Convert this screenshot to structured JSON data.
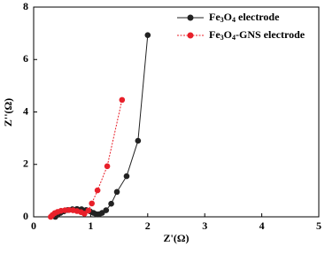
{
  "chart_data": {
    "type": "scatter-line",
    "x_label": "Z'(Ω)",
    "y_label": "Z''(Ω)",
    "xlim": [
      0,
      5
    ],
    "ylim": [
      0,
      8
    ],
    "xticks": [
      0,
      1,
      2,
      3,
      4,
      5
    ],
    "yticks": [
      0,
      2,
      4,
      6,
      8
    ],
    "legend": "upper right",
    "series": [
      {
        "name": "Fe3O4 electrode",
        "color": "#222222",
        "x": [
          0.38,
          0.42,
          0.47,
          0.53,
          0.6,
          0.68,
          0.76,
          0.84,
          0.92,
          0.99,
          1.05,
          1.1,
          1.15,
          1.2,
          1.27,
          1.36,
          1.46,
          1.63,
          1.83,
          2.0
        ],
        "values": [
          0.0,
          0.08,
          0.15,
          0.21,
          0.26,
          0.29,
          0.3,
          0.29,
          0.26,
          0.21,
          0.15,
          0.1,
          0.1,
          0.15,
          0.25,
          0.5,
          0.95,
          1.55,
          2.9,
          6.93
        ]
      },
      {
        "name": "Fe3O4-GNS electrode",
        "color": "#e8202a",
        "x": [
          0.3,
          0.33,
          0.37,
          0.42,
          0.48,
          0.55,
          0.62,
          0.69,
          0.76,
          0.83,
          0.89,
          0.96,
          1.02,
          1.12,
          1.29,
          1.55
        ],
        "values": [
          0.0,
          0.07,
          0.14,
          0.19,
          0.23,
          0.25,
          0.26,
          0.25,
          0.22,
          0.18,
          0.12,
          0.24,
          0.51,
          1.01,
          1.93,
          4.46
        ]
      }
    ]
  }
}
